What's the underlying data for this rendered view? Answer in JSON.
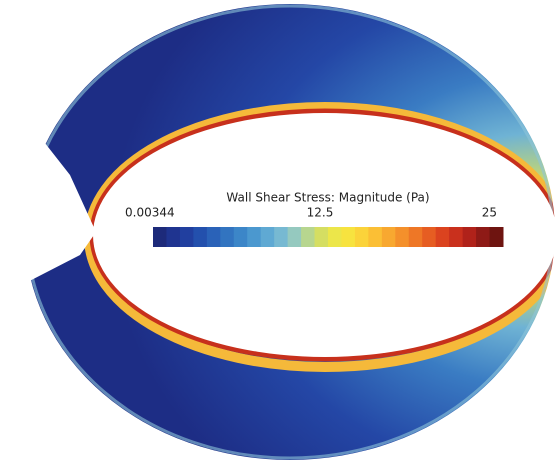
{
  "colorbar": {
    "title": "Wall Shear Stress: Magnitude (Pa)",
    "ticks": [
      0.00344,
      12.5,
      25
    ],
    "colors": [
      "#1d2a7a",
      "#1f3490",
      "#213f9f",
      "#2350ad",
      "#2a62b8",
      "#3274c0",
      "#3c86c8",
      "#4b98cf",
      "#5fa9d3",
      "#77b9d2",
      "#95c9bf",
      "#b7d68f",
      "#d5de62",
      "#ece64a",
      "#f7e33f",
      "#fbd33a",
      "#fbbf35",
      "#f8a830",
      "#f4902b",
      "#ee7726",
      "#e65d22",
      "#db431f",
      "#c9301d",
      "#b0221a",
      "#8e1a16",
      "#6e1410"
    ]
  }
}
